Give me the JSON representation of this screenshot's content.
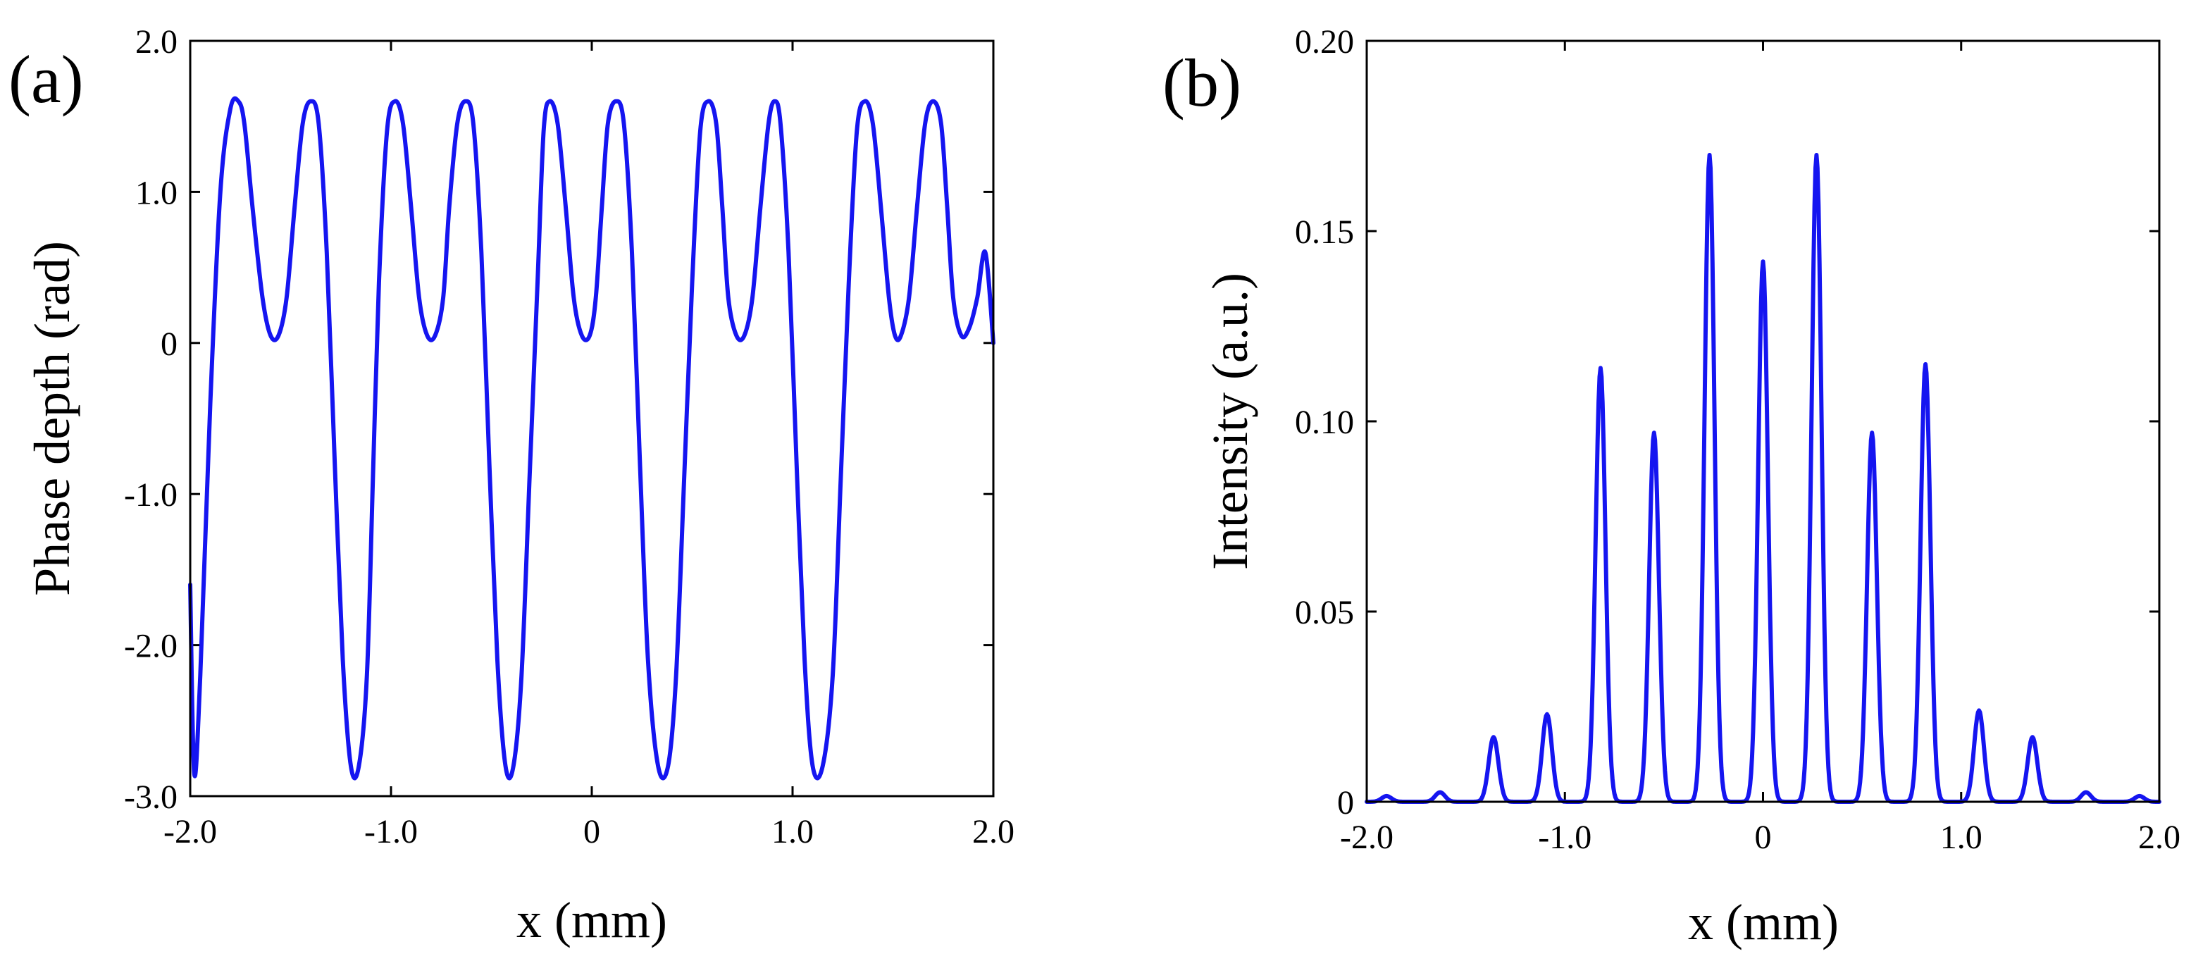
{
  "colors": {
    "series": "#1515f0",
    "axes": "#000000"
  },
  "chart_data": [
    {
      "type": "line",
      "panel_label": "(a)",
      "xlabel": "x (mm)",
      "ylabel": "Phase depth (rad)",
      "xlim": [
        -2.0,
        2.0
      ],
      "ylim": [
        -3.0,
        2.0
      ],
      "xticks": [
        -2.0,
        -1.0,
        0,
        1.0,
        2.0
      ],
      "xtick_labels": [
        "-2.0",
        "-1.0",
        "0",
        "1.0",
        "2.0"
      ],
      "yticks": [
        -3.0,
        -2.0,
        -1.0,
        0,
        1.0,
        2.0
      ],
      "ytick_labels": [
        "-3.0",
        "-2.0",
        "-1.0",
        "0",
        "1.0",
        "2.0"
      ],
      "series": [
        {
          "name": "phase depth",
          "x": [
            -2.0,
            -1.98,
            -1.95,
            -1.9,
            -1.85,
            -1.8,
            -1.76,
            -1.73,
            -1.69,
            -1.64,
            -1.6,
            -1.56,
            -1.52,
            -1.48,
            -1.44,
            -1.4,
            -1.36,
            -1.32,
            -1.28,
            -1.24,
            -1.2,
            -1.16,
            -1.12,
            -1.09,
            -1.06,
            -1.02,
            -0.98,
            -0.94,
            -0.9,
            -0.86,
            -0.82,
            -0.78,
            -0.74,
            -0.71,
            -0.67,
            -0.63,
            -0.59,
            -0.55,
            -0.51,
            -0.47,
            -0.43,
            -0.39,
            -0.35,
            -0.31,
            -0.27,
            -0.24,
            -0.21,
            -0.17,
            -0.13,
            -0.09,
            -0.05,
            -0.01,
            0.02,
            0.05,
            0.08,
            0.12,
            0.16,
            0.2,
            0.24,
            0.28,
            0.33,
            0.38,
            0.42,
            0.46,
            0.5,
            0.54,
            0.58,
            0.62,
            0.65,
            0.68,
            0.72,
            0.76,
            0.8,
            0.84,
            0.88,
            0.91,
            0.94,
            0.98,
            1.02,
            1.06,
            1.1,
            1.15,
            1.2,
            1.24,
            1.28,
            1.32,
            1.36,
            1.4,
            1.44,
            1.48,
            1.51,
            1.54,
            1.58,
            1.62,
            1.66,
            1.7,
            1.74,
            1.77,
            1.8,
            1.84,
            1.88,
            1.92,
            1.96,
            2.0
          ],
          "y": [
            -1.6,
            -2.85,
            -2.2,
            -0.4,
            1.0,
            1.55,
            1.6,
            1.45,
            0.9,
            0.3,
            0.05,
            0.05,
            0.3,
            0.9,
            1.45,
            1.6,
            1.45,
            0.6,
            -0.8,
            -2.1,
            -2.8,
            -2.8,
            -2.2,
            -0.9,
            0.4,
            1.4,
            1.6,
            1.45,
            0.9,
            0.3,
            0.05,
            0.05,
            0.3,
            0.9,
            1.45,
            1.6,
            1.45,
            0.6,
            -0.8,
            -2.1,
            -2.8,
            -2.8,
            -2.2,
            -0.9,
            0.4,
            1.4,
            1.6,
            1.45,
            0.9,
            0.3,
            0.05,
            0.05,
            0.3,
            0.9,
            1.45,
            1.6,
            1.45,
            0.6,
            -0.8,
            -2.1,
            -2.8,
            -2.8,
            -2.2,
            -0.9,
            0.4,
            1.4,
            1.6,
            1.45,
            0.9,
            0.3,
            0.05,
            0.05,
            0.3,
            0.9,
            1.45,
            1.6,
            1.45,
            0.6,
            -0.8,
            -2.1,
            -2.8,
            -2.8,
            -2.2,
            -0.9,
            0.4,
            1.4,
            1.6,
            1.45,
            0.9,
            0.3,
            0.05,
            0.05,
            0.3,
            0.9,
            1.45,
            1.6,
            1.45,
            0.9,
            0.3,
            0.05,
            0.1,
            0.3,
            0.6,
            0.0
          ]
        }
      ]
    },
    {
      "type": "line",
      "panel_label": "(b)",
      "xlabel": "x (mm)",
      "ylabel": "Intensity (a.u.)",
      "xlim": [
        -2.0,
        2.0
      ],
      "ylim": [
        0,
        0.2
      ],
      "xticks": [
        -2.0,
        -1.0,
        0,
        1.0,
        2.0
      ],
      "xtick_labels": [
        "-2.0",
        "-1.0",
        "0",
        "1.0",
        "2.0"
      ],
      "yticks": [
        0,
        0.05,
        0.1,
        0.15,
        0.2
      ],
      "ytick_labels": [
        "0",
        "0.05",
        "0.10",
        "0.15",
        "0.20"
      ],
      "peaks": {
        "x": [
          -1.9,
          -1.63,
          -1.36,
          -1.09,
          -0.82,
          -0.55,
          -0.27,
          0.0,
          0.27,
          0.55,
          0.82,
          1.09,
          1.36,
          1.63,
          1.9
        ],
        "value": [
          0.0015,
          0.0025,
          0.017,
          0.023,
          0.114,
          0.097,
          0.17,
          0.142,
          0.17,
          0.097,
          0.115,
          0.024,
          0.017,
          0.0025,
          0.0015
        ],
        "width_mm": 0.035
      }
    }
  ]
}
